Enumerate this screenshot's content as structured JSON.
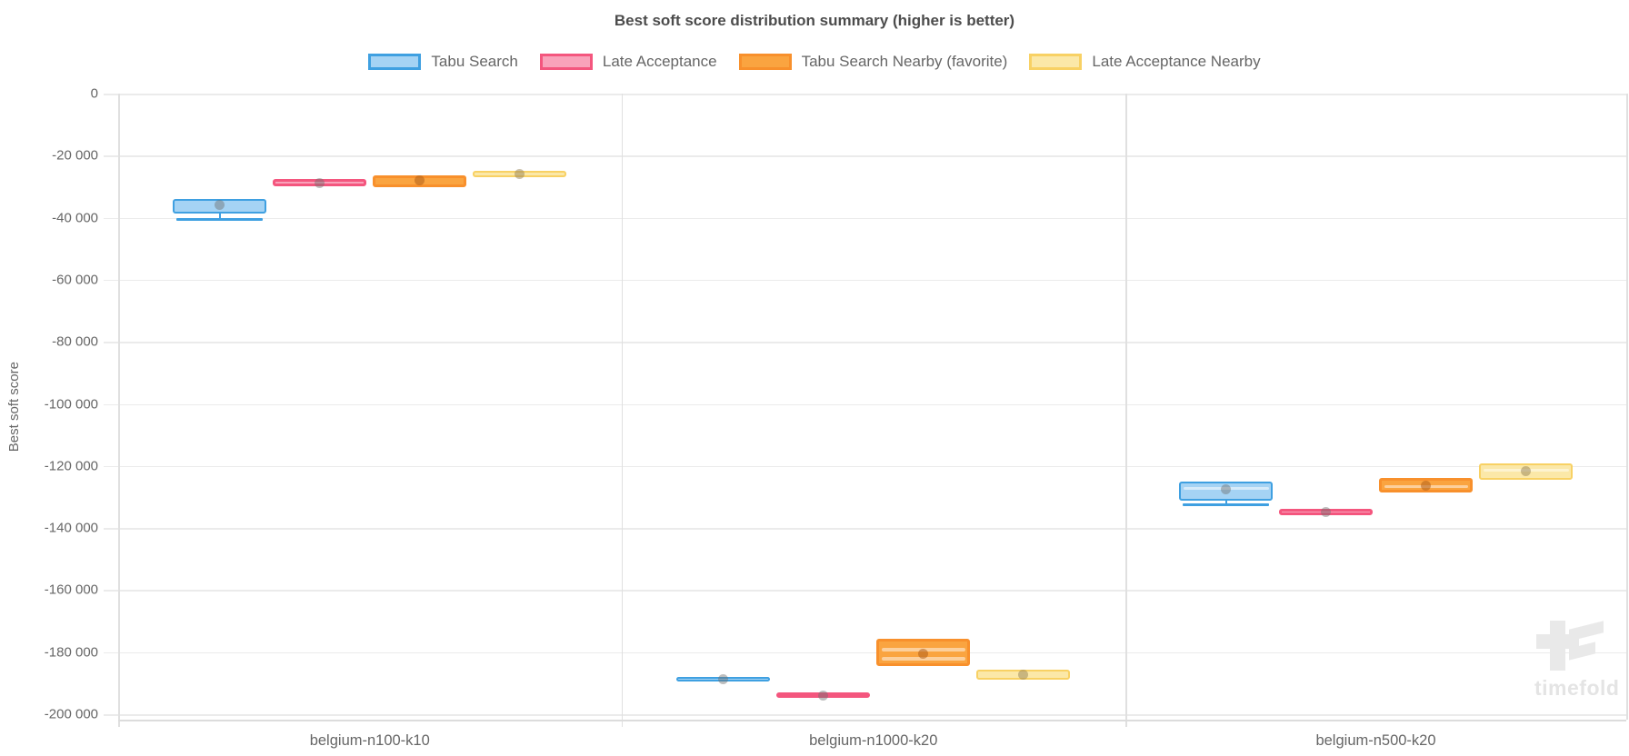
{
  "watermark": {
    "text": "timefold"
  },
  "chart_data": {
    "type": "boxplot",
    "title": "Best soft score distribution summary (higher is better)",
    "ylabel": "Best soft score",
    "xlabel": "",
    "ylim": [
      -200000,
      0
    ],
    "ytick_step": 20000,
    "ytick_labels": [
      "0",
      "-20 000",
      "-40 000",
      "-60 000",
      "-80 000",
      "-100 000",
      "-120 000",
      "-140 000",
      "-160 000",
      "-180 000",
      "-200 000"
    ],
    "grid": true,
    "legend_position": "top",
    "categories": [
      "belgium-n100-k10",
      "belgium-n1000-k20",
      "belgium-n500-k20"
    ],
    "series": [
      {
        "name": "Tabu Search",
        "fill": "#A5D3F4",
        "border": "#3FA0E1",
        "stripe": "#D6EBFA",
        "mean_dot": "rgba(110,110,110,0.45)",
        "boxes": [
          {
            "q3": -34000,
            "q1": -38700,
            "medians": [
              -38200
            ],
            "mean": -35800,
            "min": -40200
          },
          {
            "q3": -188000,
            "q1": -189600,
            "medians": [
              -188800
            ],
            "mean": -188800,
            "min": null
          },
          {
            "q3": -125000,
            "q1": -131200,
            "medians": [
              -126700
            ],
            "mean": -127500,
            "min": -132100
          }
        ]
      },
      {
        "name": "Late Acceptance",
        "fill": "#F9A2BA",
        "border": "#F4567E",
        "stripe": "#FBCAD6",
        "mean_dot": "rgba(110,110,110,0.45)",
        "boxes": [
          {
            "q3": -27400,
            "q1": -29900,
            "medians": [
              -28600
            ],
            "mean": -28700,
            "min": null
          },
          {
            "q3": -193100,
            "q1": -194700,
            "medians": [
              -193900
            ],
            "mean": -193900,
            "min": null
          },
          {
            "q3": -133800,
            "q1": -135800,
            "medians": [
              -134800
            ],
            "mean": -134900,
            "min": null
          }
        ]
      },
      {
        "name": "Tabu Search Nearby (favorite)",
        "fill": "#FAA440",
        "border": "#F8902C",
        "stripe": "#FCCF9C",
        "mean_dot": "rgba(176,95,23,0.55)",
        "boxes": [
          {
            "q3": -26300,
            "q1": -30200,
            "medians": [
              -28200
            ],
            "mean": -27900,
            "min": null
          },
          {
            "q3": -175600,
            "q1": -184400,
            "medians": [
              -178700,
              -181600
            ],
            "mean": -180400,
            "min": null
          },
          {
            "q3": -123800,
            "q1": -128600,
            "medians": [
              -126200
            ],
            "mean": -126300,
            "min": null
          }
        ]
      },
      {
        "name": "Late Acceptance Nearby",
        "fill": "#FBE8A8",
        "border": "#F8D164",
        "stripe": "#FDF3D0",
        "mean_dot": "rgba(150,130,85,0.5)",
        "boxes": [
          {
            "q3": -24800,
            "q1": -26900,
            "medians": [
              -25800
            ],
            "mean": -25900,
            "min": null
          },
          {
            "q3": -185600,
            "q1": -188900,
            "medians": [
              -187200
            ],
            "mean": -187300,
            "min": null
          },
          {
            "q3": -119200,
            "q1": -124400,
            "medians": [
              -120800,
              -122500
            ],
            "mean": -121600,
            "min": null
          }
        ]
      }
    ]
  }
}
